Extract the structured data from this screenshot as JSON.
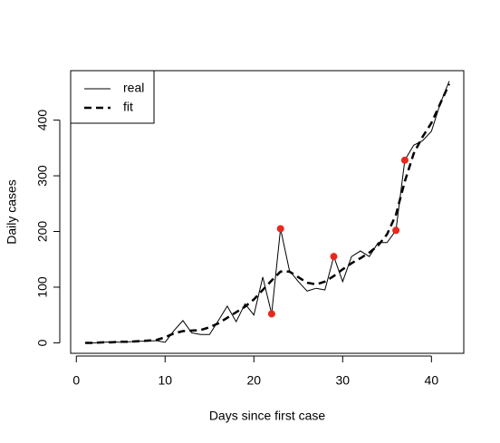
{
  "chart_data": {
    "type": "line",
    "x_label": "Days since first case",
    "y_label": "Daily cases",
    "x": [
      1,
      2,
      3,
      4,
      5,
      6,
      7,
      8,
      9,
      10,
      11,
      12,
      13,
      14,
      15,
      16,
      17,
      18,
      19,
      20,
      21,
      22,
      23,
      24,
      25,
      26,
      27,
      28,
      29,
      30,
      31,
      32,
      33,
      34,
      35,
      36,
      37,
      38,
      39,
      40,
      41,
      42
    ],
    "series": [
      {
        "name": "real",
        "color": "#000000",
        "dash": false,
        "values": [
          0,
          0,
          1,
          2,
          1,
          2,
          3,
          3,
          4,
          1,
          22,
          40,
          18,
          15,
          15,
          40,
          66,
          38,
          70,
          50,
          118,
          52,
          205,
          130,
          110,
          93,
          98,
          95,
          155,
          110,
          155,
          165,
          155,
          180,
          180,
          202,
          328,
          355,
          363,
          380,
          430,
          470
        ]
      },
      {
        "name": "fit",
        "color": "#000000",
        "dash": true,
        "values": [
          0,
          0,
          1,
          1,
          2,
          2,
          3,
          4,
          5,
          10,
          17,
          21,
          22,
          23,
          28,
          35,
          45,
          55,
          65,
          78,
          95,
          112,
          128,
          128,
          118,
          108,
          105,
          110,
          120,
          132,
          143,
          152,
          162,
          175,
          195,
          230,
          290,
          340,
          370,
          395,
          430,
          465
        ]
      }
    ],
    "highlights": {
      "color": "#e8281e",
      "x": [
        22,
        23,
        29,
        36,
        37
      ],
      "values": [
        52,
        205,
        155,
        202,
        328
      ]
    },
    "xlim": [
      -0.64,
      43.64
    ],
    "xticks": [
      0,
      10,
      20,
      30,
      40
    ],
    "ylim": [
      -18.8,
      488.8
    ],
    "yticks": [
      0,
      100,
      200,
      300,
      400
    ],
    "legend": "top-left"
  }
}
